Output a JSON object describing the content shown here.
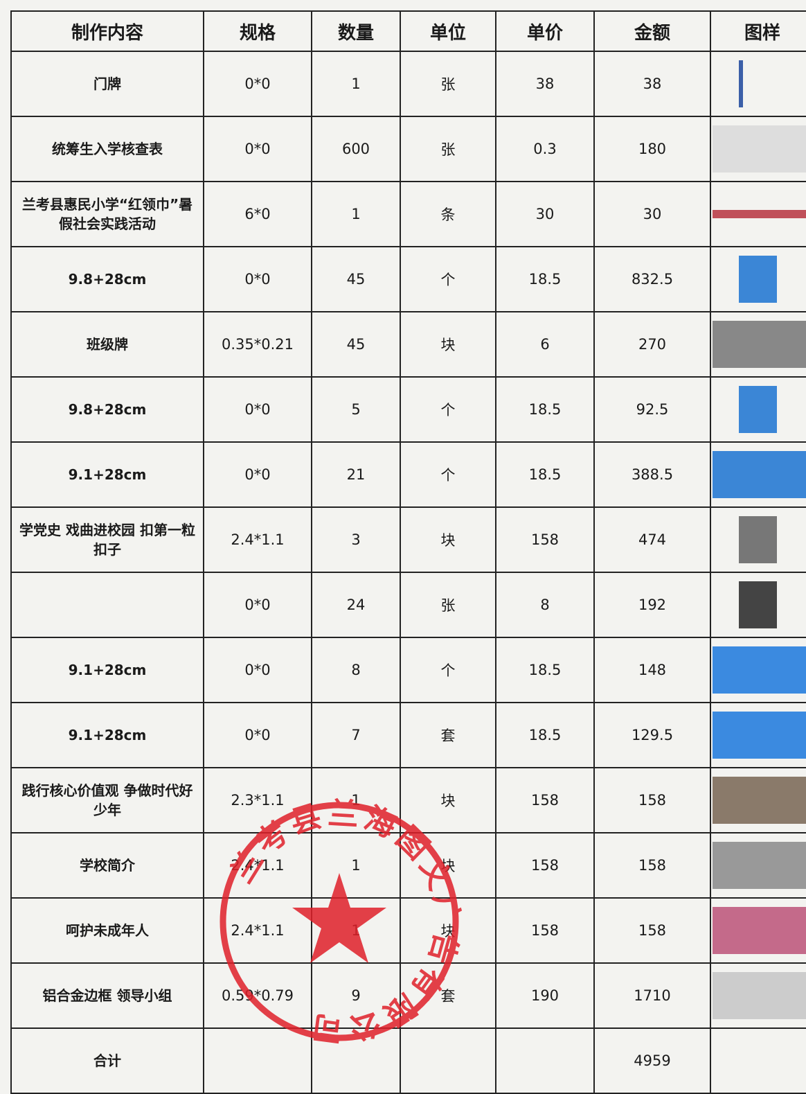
{
  "table": {
    "header": [
      "制作内容",
      "规格",
      "数量",
      "单位",
      "单价",
      "金额",
      "图样"
    ],
    "rows": [
      [
        "门牌",
        "0*0",
        "1",
        "张",
        "38",
        "38"
      ],
      [
        "统筹生入学核查表",
        "0*0",
        "600",
        "张",
        "0.3",
        "180"
      ],
      [
        "兰考县惠民小学“红领巾”暑假社会实践活动",
        "6*0",
        "1",
        "条",
        "30",
        "30"
      ],
      [
        "9.8+28cm",
        "0*0",
        "45",
        "个",
        "18.5",
        "832.5"
      ],
      [
        "班级牌",
        "0.35*0.21",
        "45",
        "块",
        "6",
        "270"
      ],
      [
        "9.8+28cm",
        "0*0",
        "5",
        "个",
        "18.5",
        "92.5"
      ],
      [
        "9.1+28cm",
        "0*0",
        "21",
        "个",
        "18.5",
        "388.5"
      ],
      [
        "学党史 戏曲进校园 扣第一粒扣子",
        "2.4*1.1",
        "3",
        "块",
        "158",
        "474"
      ],
      [
        null,
        "0*0",
        "24",
        "张",
        "8",
        "192"
      ],
      [
        "9.1+28cm",
        "0*0",
        "8",
        "个",
        "18.5",
        "148"
      ],
      [
        "9.1+28cm",
        "0*0",
        "7",
        "套",
        "18.5",
        "129.5"
      ],
      [
        "践行核心价值观 争做时代好少年",
        "2.3*1.1",
        "1",
        "块",
        "158",
        "158"
      ],
      [
        "学校简介",
        "2.4*1.1",
        "1",
        "块",
        "158",
        "158"
      ],
      [
        "呵护未成年人",
        "2.4*1.1",
        "1",
        "块",
        "158",
        "158"
      ],
      [
        "铝合金边框 领导小组",
        "0.59*0.79",
        "9",
        "套",
        "190",
        "1710"
      ]
    ],
    "total": {
      "label": "合计",
      "amount": "4959"
    }
  },
  "stamp": {
    "text": "兰考县兰海图文广告有限公司"
  }
}
